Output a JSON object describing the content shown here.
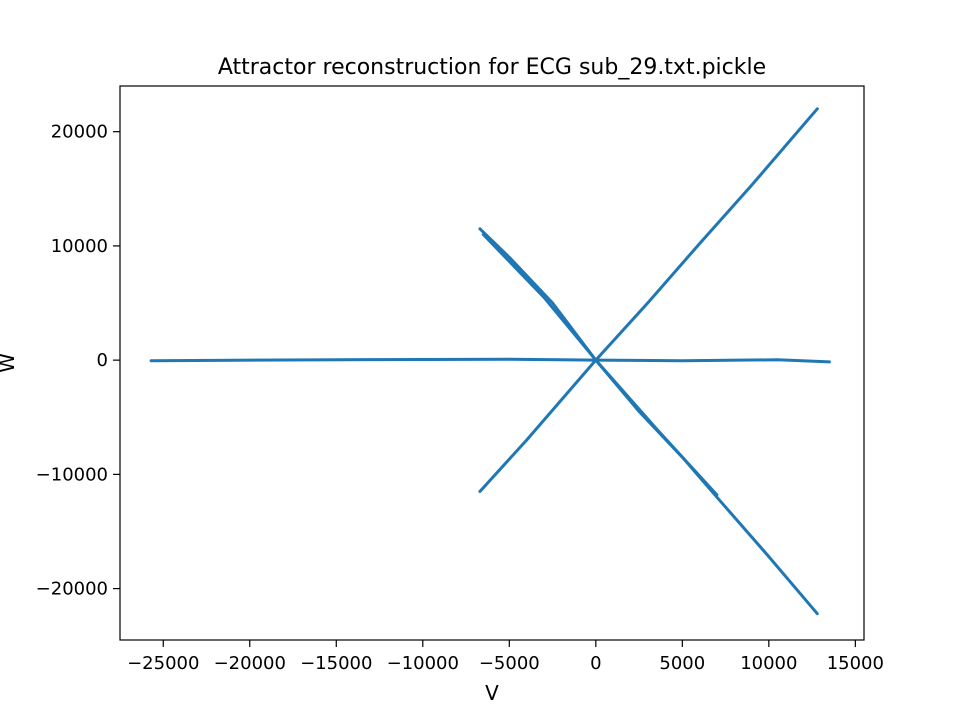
{
  "chart_data": {
    "type": "line",
    "title": "Attractor reconstruction for ECG sub_29.txt.pickle",
    "xlabel": "V",
    "ylabel": "W",
    "xlim": [
      -27500,
      15500
    ],
    "ylim": [
      -24500,
      24000
    ],
    "xticks": [
      -25000,
      -20000,
      -15000,
      -10000,
      -5000,
      0,
      5000,
      10000,
      15000
    ],
    "yticks": [
      -20000,
      -10000,
      0,
      10000,
      20000
    ],
    "xtick_labels": [
      "−25000",
      "−20000",
      "−15000",
      "−10000",
      "−5000",
      "0",
      "5000",
      "10000",
      "15000"
    ],
    "ytick_labels": [
      "−20000",
      "−10000",
      "0",
      "10000",
      "20000"
    ],
    "grid": false,
    "legend": "none",
    "series": [
      {
        "color": "#1f77b4",
        "segments": [
          {
            "x": [
              -25700,
              -13000,
              -5000,
              0,
              5000,
              10500,
              13500
            ],
            "y": [
              -50,
              50,
              80,
              0,
              -50,
              30,
              -150
            ]
          },
          {
            "x": [
              -6700,
              -5000,
              -2500,
              0,
              2500,
              5000,
              7000,
              10000,
              12800
            ],
            "y": [
              11500,
              9000,
              5000,
              0,
              -4500,
              -8500,
              -12000,
              -17200,
              -22200
            ]
          },
          {
            "x": [
              -6700,
              -4000,
              -2000,
              0,
              3000,
              6000,
              9000,
              12800
            ],
            "y": [
              -11500,
              -7000,
              -3500,
              0,
              5000,
              10200,
              15300,
              22000
            ]
          },
          {
            "x": [
              -6500,
              -3000,
              0,
              3500,
              7000
            ],
            "y": [
              11000,
              5500,
              0,
              -6000,
              -11800
            ]
          }
        ]
      }
    ]
  }
}
